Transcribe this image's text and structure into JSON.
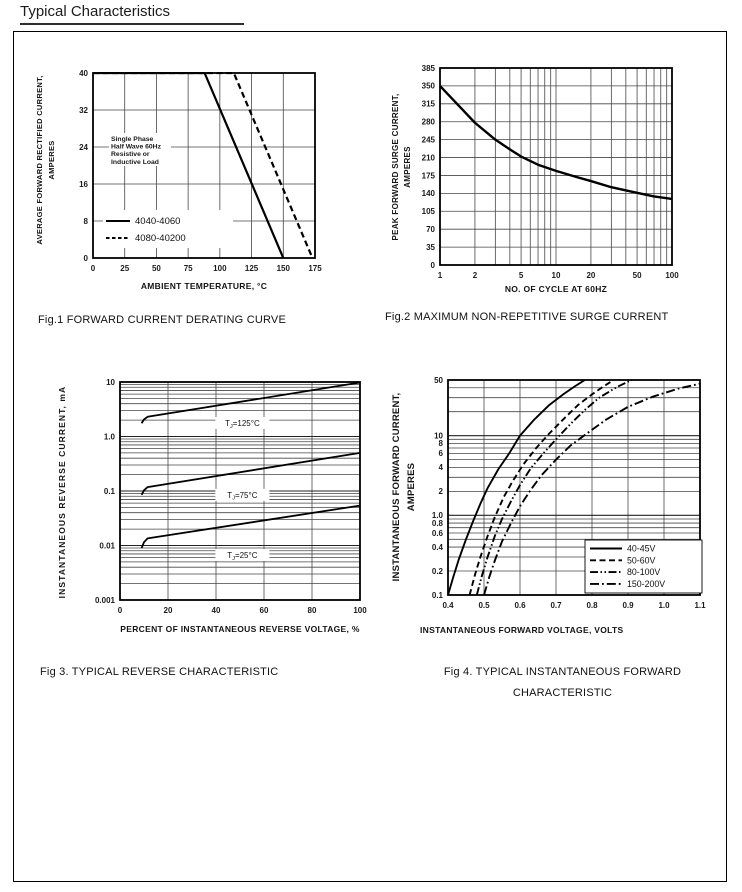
{
  "page": {
    "title": "Typical Characteristics"
  },
  "chart_data": [
    {
      "type": "line",
      "title": "Fig.1 FORWARD CURRENT DERATING CURVE",
      "xlabel": "AMBIENT TEMPERATURE, °C",
      "ylabel_lines": [
        "AVERAGE FORWARD RECTIFIED CURRENT,",
        "AMPERES"
      ],
      "xscale": "linear",
      "yscale": "linear",
      "xlim": [
        0,
        175
      ],
      "ylim": [
        0,
        40
      ],
      "xticks": [
        0,
        25,
        50,
        75,
        100,
        125,
        150,
        175
      ],
      "yticks": [
        0,
        8,
        16,
        24,
        32,
        40
      ],
      "grid": true,
      "annotation": {
        "lines": [
          "Single Phase",
          "Half Wave 60Hz",
          "Resistive or",
          "Inductive Load"
        ]
      },
      "legend_position": "inside-bottom-left",
      "series": [
        {
          "name": "4040-4060",
          "style": "solid",
          "x": [
            0,
            88,
            150
          ],
          "y": [
            40,
            40,
            0
          ]
        },
        {
          "name": "4080-40200",
          "style": "dashed",
          "x": [
            0,
            111,
            173
          ],
          "y": [
            40,
            40,
            0
          ]
        }
      ]
    },
    {
      "type": "line",
      "title": "Fig.2 MAXIMUM NON-REPETITIVE SURGE CURRENT",
      "xlabel": "NO. OF CYCLE AT 60HZ",
      "ylabel_lines": [
        "PEAK FORWARD SURGE CURRENT,",
        "AMPERES"
      ],
      "xscale": "log",
      "yscale": "linear",
      "xlim": [
        1,
        100
      ],
      "ylim": [
        0,
        385
      ],
      "xticks": [
        1,
        2,
        5,
        10,
        20,
        50,
        100
      ],
      "yticks": [
        0,
        35,
        70,
        105,
        140,
        175,
        210,
        245,
        280,
        315,
        350,
        385
      ],
      "grid": true,
      "series": [
        {
          "style": "solid",
          "x": [
            1,
            1.5,
            2,
            3,
            4,
            5,
            7,
            10,
            15,
            20,
            30,
            50,
            70,
            100
          ],
          "y": [
            350,
            308,
            278,
            245,
            226,
            212,
            196,
            184,
            172,
            164,
            152,
            141,
            134,
            129
          ]
        }
      ]
    },
    {
      "type": "line",
      "title": "Fig 3. TYPICAL REVERSE CHARACTERISTIC",
      "xlabel": "PERCENT OF INSTANTANEOUS REVERSE VOLTAGE, %",
      "ylabel_lines": [
        "INSTANTANEOUS REVERSE CURRENT, mA"
      ],
      "xscale": "linear",
      "yscale": "log",
      "xlim": [
        0,
        100
      ],
      "ylim": [
        0.001,
        10
      ],
      "xticks": [
        0,
        20,
        40,
        60,
        80,
        100
      ],
      "yticks": [
        10,
        1.0,
        0.1,
        0.01,
        0.001
      ],
      "ytick_labels": [
        "10",
        "1.0",
        "0.1",
        "0.01",
        "0.001"
      ],
      "grid": true,
      "series": [
        {
          "name": "TJ=125°C",
          "style": "solid",
          "label_x": 51,
          "label_y": 1.77,
          "x": [
            9,
            10,
            11.5,
            100
          ],
          "y": [
            1.75,
            2.05,
            2.3,
            9.8
          ]
        },
        {
          "name": "TJ=75°C",
          "style": "solid",
          "label_x": 51,
          "label_y": 0.085,
          "x": [
            9,
            10,
            11.5,
            100
          ],
          "y": [
            0.085,
            0.103,
            0.118,
            0.5
          ]
        },
        {
          "name": "TJ=25°C",
          "style": "solid",
          "label_x": 51,
          "label_y": 0.0067,
          "x": [
            9,
            10,
            11.5,
            100
          ],
          "y": [
            0.009,
            0.0115,
            0.0135,
            0.054
          ]
        }
      ]
    },
    {
      "type": "line",
      "title": "Fig 4. TYPICAL INSTANTANEOUS FORWARD CHARACTERISTIC",
      "xlabel": "INSTANTANEOUS FORWARD VOLTAGE, VOLTS",
      "ylabel_lines": [
        "INSTANTANEOUS FORWARD CURRENT,",
        "AMPERES"
      ],
      "xscale": "linear",
      "yscale": "log",
      "xlim": [
        0.4,
        1.1
      ],
      "ylim": [
        0.1,
        50
      ],
      "xticks": [
        0.4,
        0.5,
        0.6,
        0.7,
        0.8,
        0.9,
        1.0,
        1.1
      ],
      "xtick_labels": [
        "0.4",
        "0.5",
        "0.6",
        "0.7",
        "0.8",
        "0.9",
        "1.0",
        "1.1"
      ],
      "yticks": [
        50,
        10,
        8,
        6,
        4,
        2,
        1.0,
        0.8,
        0.6,
        0.4,
        0.2,
        0.1
      ],
      "ytick_labels": [
        "50",
        "10",
        "8",
        "6",
        "4",
        "2",
        "1.0",
        "0.8",
        "0.6",
        "0.4",
        "0.2",
        "0.1"
      ],
      "grid": true,
      "legend_position": "inside-bottom-right",
      "series": [
        {
          "name": "40-45V",
          "style": "solid",
          "x": [
            0.4,
            0.415,
            0.43,
            0.45,
            0.47,
            0.49,
            0.51,
            0.54,
            0.57,
            0.6,
            0.64,
            0.68,
            0.72,
            0.75,
            0.78
          ],
          "y": [
            0.1,
            0.17,
            0.28,
            0.5,
            0.85,
            1.4,
            2.2,
            3.8,
            6,
            10,
            16,
            24,
            33,
            41,
            50
          ]
        },
        {
          "name": "50-60V",
          "style": "dashed",
          "x": [
            0.46,
            0.475,
            0.49,
            0.51,
            0.53,
            0.555,
            0.58,
            0.61,
            0.645,
            0.68,
            0.72,
            0.76,
            0.8,
            0.83,
            0.86
          ],
          "y": [
            0.1,
            0.18,
            0.3,
            0.55,
            0.95,
            1.7,
            2.7,
            4.4,
            7,
            10.5,
            16,
            24,
            33,
            41,
            50
          ]
        },
        {
          "name": "80-100V",
          "style": "dashdotdot",
          "x": [
            0.48,
            0.495,
            0.51,
            0.53,
            0.55,
            0.575,
            0.6,
            0.63,
            0.665,
            0.7,
            0.74,
            0.78,
            0.82,
            0.87,
            0.91
          ],
          "y": [
            0.1,
            0.18,
            0.3,
            0.55,
            0.9,
            1.5,
            2.4,
            3.9,
            6,
            9,
            14,
            21,
            30,
            41,
            50
          ]
        },
        {
          "name": "150-200V",
          "style": "dashdot",
          "x": [
            0.5,
            0.515,
            0.53,
            0.55,
            0.575,
            0.6,
            0.63,
            0.66,
            0.7,
            0.74,
            0.79,
            0.84,
            0.9,
            0.97,
            1.04,
            1.1
          ],
          "y": [
            0.1,
            0.17,
            0.27,
            0.47,
            0.8,
            1.3,
            2.1,
            3.2,
            5,
            7.5,
            11,
            16,
            23,
            31,
            39,
            45
          ]
        }
      ]
    }
  ]
}
